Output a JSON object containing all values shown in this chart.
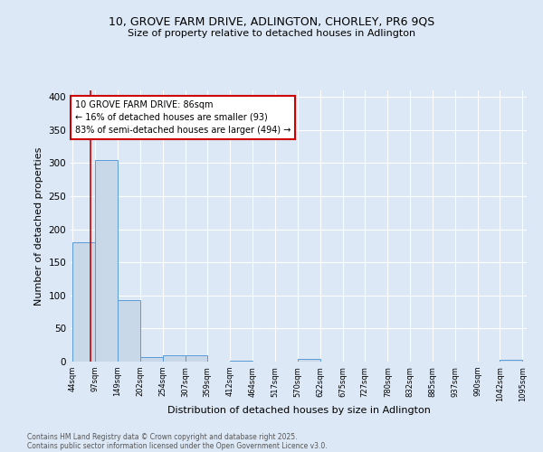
{
  "title1": "10, GROVE FARM DRIVE, ADLINGTON, CHORLEY, PR6 9QS",
  "title2": "Size of property relative to detached houses in Adlington",
  "xlabel": "Distribution of detached houses by size in Adlington",
  "ylabel": "Number of detached properties",
  "bar_edges": [
    44,
    97,
    149,
    202,
    254,
    307,
    359,
    412,
    464,
    517,
    570,
    622,
    675,
    727,
    780,
    832,
    885,
    937,
    990,
    1042,
    1095
  ],
  "bar_heights": [
    180,
    305,
    93,
    7,
    9,
    9,
    0,
    2,
    0,
    0,
    4,
    0,
    0,
    0,
    0,
    0,
    0,
    0,
    0,
    3
  ],
  "bar_color": "#c8d8e8",
  "bar_edge_color": "#5b9bd5",
  "vline_x": 86,
  "vline_color": "#cc0000",
  "annotation_line1": "10 GROVE FARM DRIVE: 86sqm",
  "annotation_line2": "← 16% of detached houses are smaller (93)",
  "annotation_line3": "83% of semi-detached houses are larger (494) →",
  "annotation_box_color": "#ffffff",
  "annotation_box_edge_color": "#cc0000",
  "ylim": [
    0,
    410
  ],
  "yticks": [
    0,
    50,
    100,
    150,
    200,
    250,
    300,
    350,
    400
  ],
  "bg_color": "#dce8f5",
  "footer1": "Contains HM Land Registry data © Crown copyright and database right 2025.",
  "footer2": "Contains public sector information licensed under the Open Government Licence v3.0."
}
